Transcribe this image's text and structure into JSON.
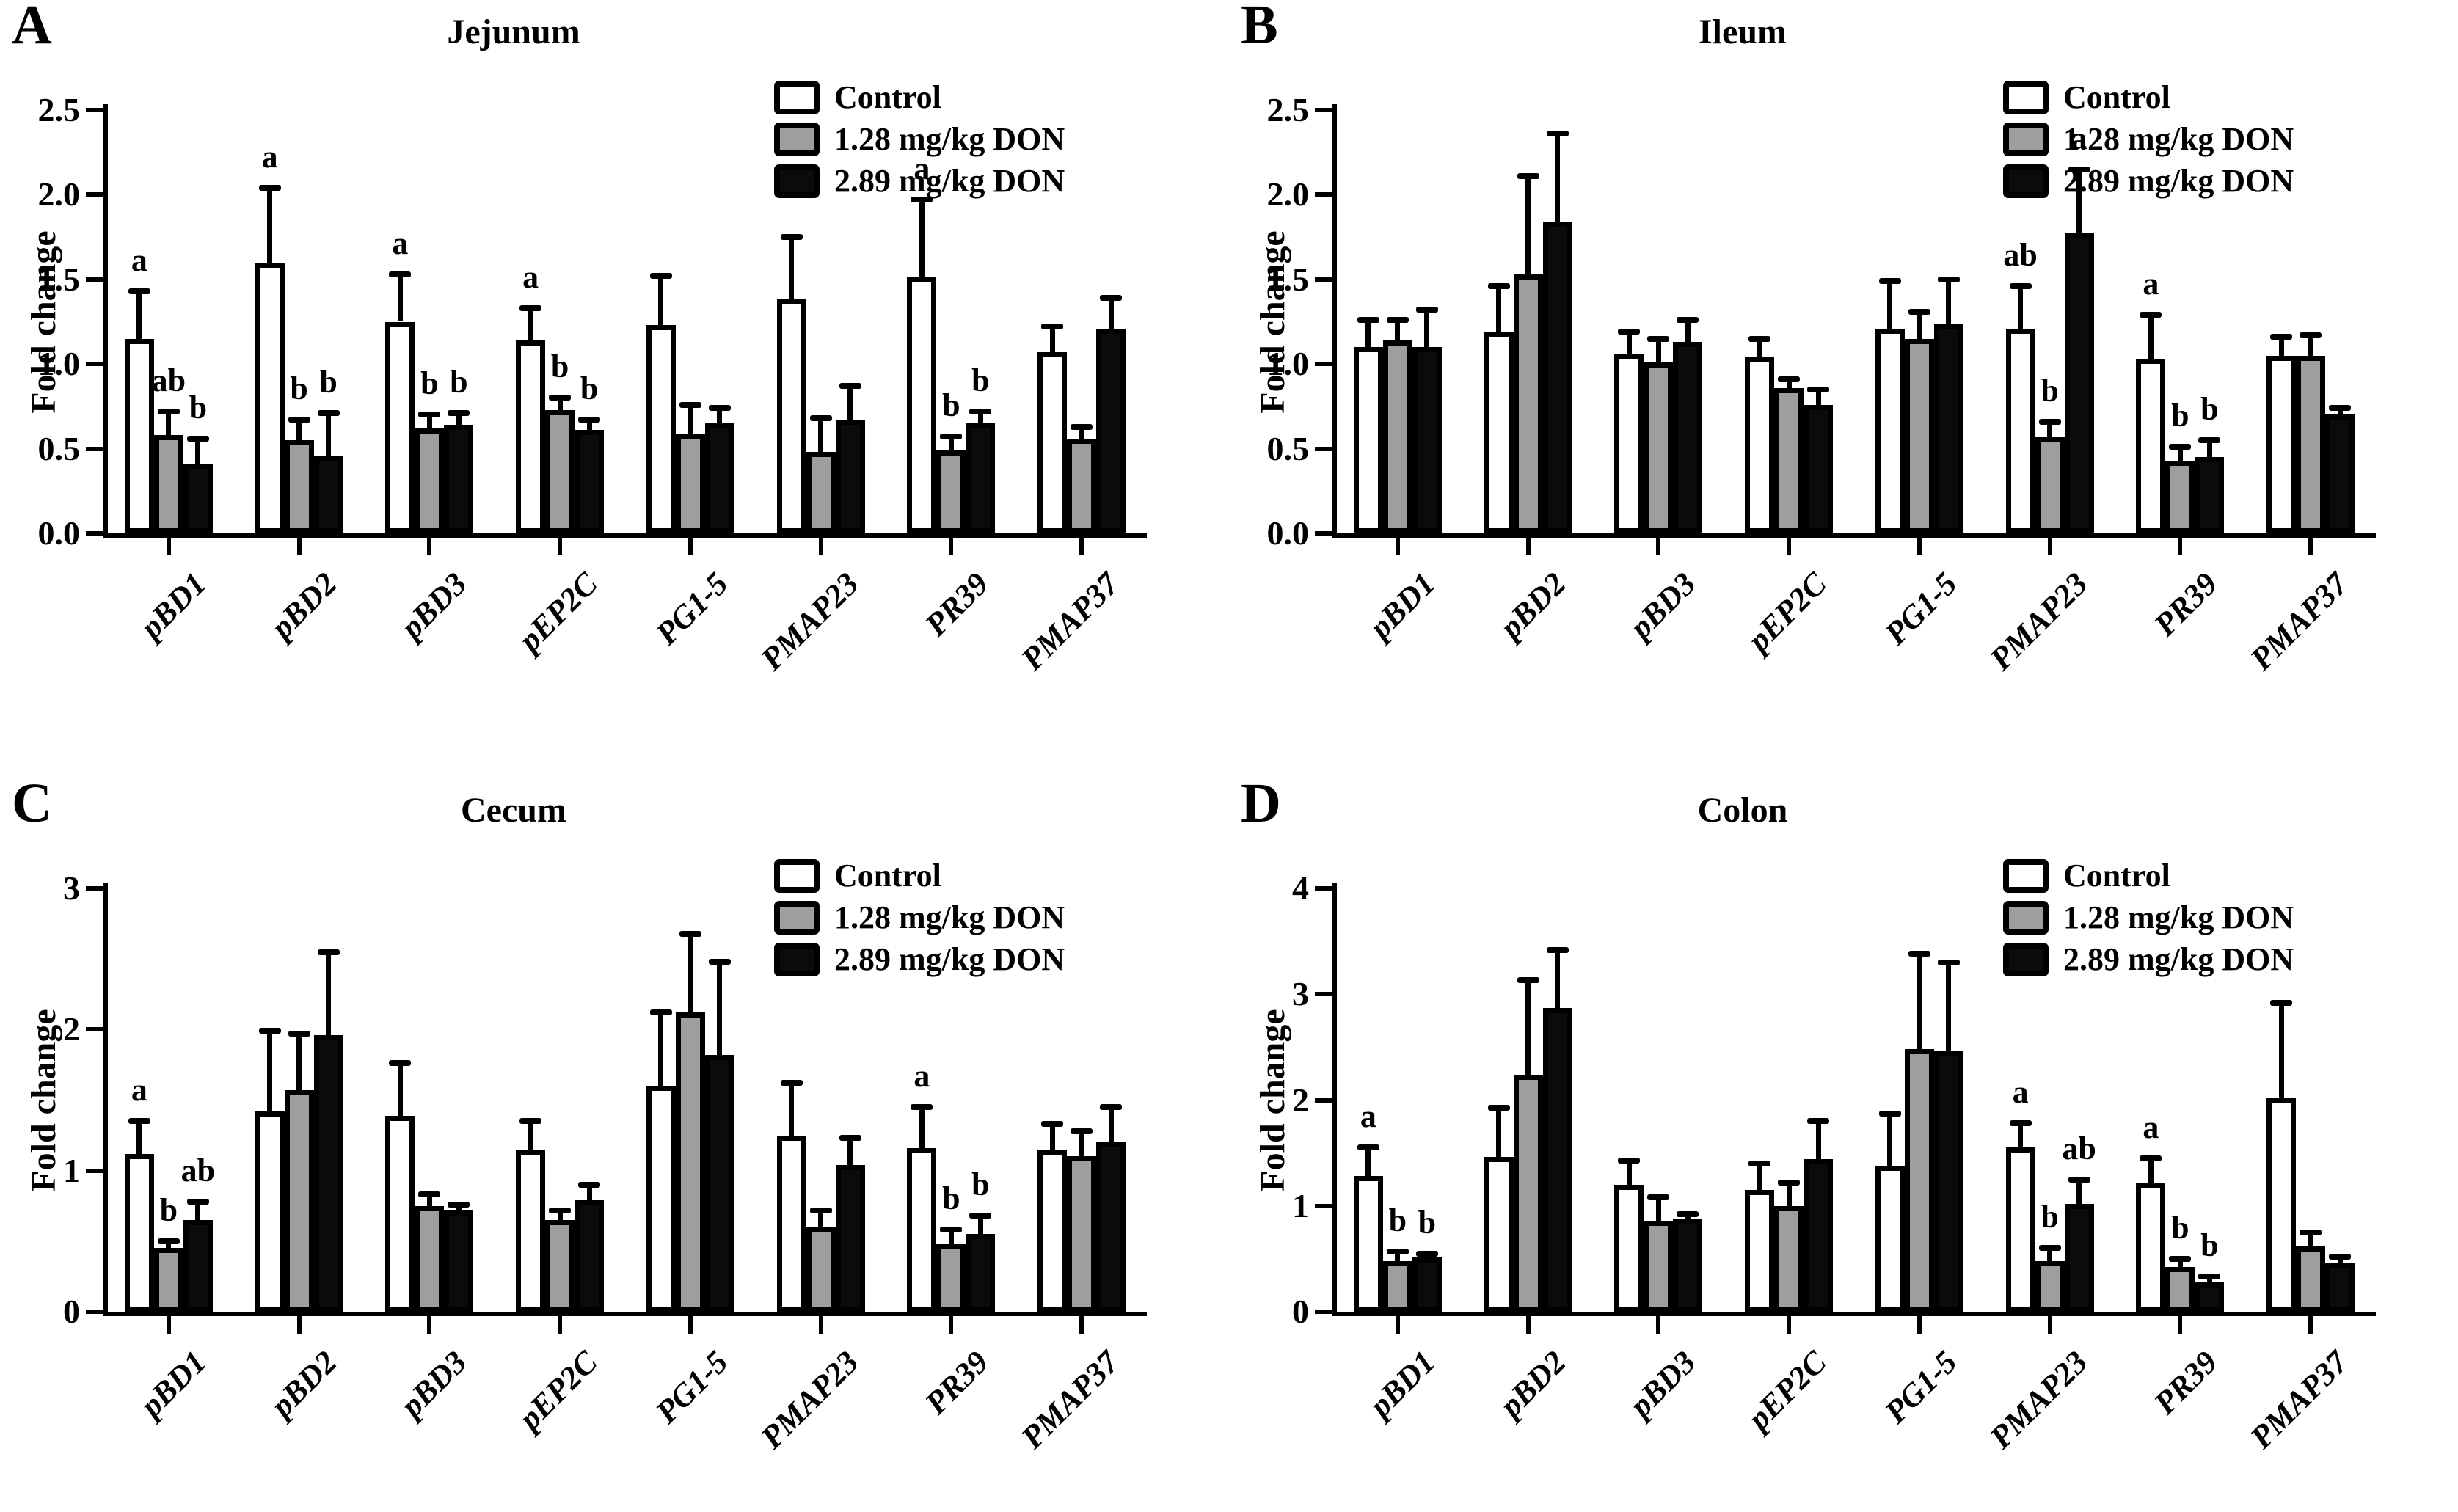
{
  "chart_data": [
    {
      "type": "bar",
      "panel_letter": "A",
      "title": "Jejunum",
      "ylabel": "Fold change",
      "ylim": [
        0,
        2.5
      ],
      "ymax": 2.5,
      "grid": false,
      "legend_position": "upper-right",
      "yticks": [
        {
          "v": 0,
          "label": "0.0"
        },
        {
          "v": 0.5,
          "label": "0.5"
        },
        {
          "v": 1.0,
          "label": "1.0"
        },
        {
          "v": 1.5,
          "label": "1.5"
        },
        {
          "v": 2.0,
          "label": "2.0"
        },
        {
          "v": 2.5,
          "label": "2.5"
        }
      ],
      "categories": [
        "pBD1",
        "pBD2",
        "pBD3",
        "pEP2C",
        "PG1-5",
        "PMAP23",
        "PR39",
        "PMAP37"
      ],
      "series": [
        {
          "name": "Control",
          "fill": "#ffffff",
          "values": [
            1.15,
            1.6,
            1.25,
            1.14,
            1.23,
            1.38,
            1.51,
            1.07
          ],
          "errors": [
            0.28,
            0.44,
            0.28,
            0.19,
            0.29,
            0.37,
            0.46,
            0.15
          ],
          "sig": [
            "a",
            "a",
            "a",
            "a",
            "",
            "",
            "a",
            ""
          ]
        },
        {
          "name": "1.28 mg/kg DON",
          "fill": "#9e9e9e",
          "values": [
            0.58,
            0.55,
            0.62,
            0.73,
            0.59,
            0.48,
            0.49,
            0.56
          ],
          "errors": [
            0.14,
            0.12,
            0.08,
            0.07,
            0.17,
            0.2,
            0.08,
            0.07
          ],
          "sig": [
            "ab",
            "b",
            "b",
            "b",
            "",
            "",
            "b",
            ""
          ]
        },
        {
          "name": "2.89 mg/kg DON",
          "fill": "#0b0b0b",
          "values": [
            0.41,
            0.46,
            0.64,
            0.61,
            0.65,
            0.67,
            0.65,
            1.21
          ],
          "errors": [
            0.15,
            0.25,
            0.07,
            0.06,
            0.09,
            0.2,
            0.07,
            0.18
          ],
          "sig": [
            "b",
            "b",
            "b",
            "b",
            "",
            "",
            "b",
            ""
          ]
        }
      ]
    },
    {
      "type": "bar",
      "panel_letter": "B",
      "title": "Ileum",
      "ylabel": "Fold change",
      "ylim": [
        0,
        2.5
      ],
      "ymax": 2.5,
      "grid": false,
      "legend_position": "upper-right",
      "yticks": [
        {
          "v": 0,
          "label": "0.0"
        },
        {
          "v": 0.5,
          "label": "0.5"
        },
        {
          "v": 1.0,
          "label": "1.0"
        },
        {
          "v": 1.5,
          "label": "1.5"
        },
        {
          "v": 2.0,
          "label": "2.0"
        },
        {
          "v": 2.5,
          "label": "2.5"
        }
      ],
      "categories": [
        "pBD1",
        "pBD2",
        "pBD3",
        "pEP2C",
        "PG1-5",
        "PMAP23",
        "PR39",
        "PMAP37"
      ],
      "series": [
        {
          "name": "Control",
          "fill": "#ffffff",
          "values": [
            1.1,
            1.19,
            1.06,
            1.04,
            1.21,
            1.21,
            1.03,
            1.05
          ],
          "errors": [
            0.16,
            0.27,
            0.13,
            0.11,
            0.28,
            0.25,
            0.26,
            0.11
          ],
          "sig": [
            "",
            "",
            "",
            "",
            "",
            "ab",
            "a",
            ""
          ]
        },
        {
          "name": "1.28 mg/kg DON",
          "fill": "#9e9e9e",
          "values": [
            1.14,
            1.53,
            1.01,
            0.86,
            1.15,
            0.57,
            0.43,
            1.05
          ],
          "errors": [
            0.12,
            0.58,
            0.14,
            0.05,
            0.16,
            0.09,
            0.08,
            0.12
          ],
          "sig": [
            "",
            "",
            "",
            "",
            "",
            "b",
            "b",
            ""
          ]
        },
        {
          "name": "2.89 mg/kg DON",
          "fill": "#0b0b0b",
          "values": [
            1.1,
            1.84,
            1.13,
            0.76,
            1.24,
            1.77,
            0.45,
            0.7
          ],
          "errors": [
            0.22,
            0.52,
            0.13,
            0.09,
            0.26,
            0.38,
            0.1,
            0.04
          ],
          "sig": [
            "",
            "",
            "",
            "",
            "",
            "a",
            "b",
            ""
          ]
        }
      ]
    },
    {
      "type": "bar",
      "panel_letter": "C",
      "title": "Cecum",
      "ylabel": "Fold change",
      "ylim": [
        0,
        3
      ],
      "ymax": 3,
      "grid": false,
      "legend_position": "upper-right",
      "yticks": [
        {
          "v": 0,
          "label": "0"
        },
        {
          "v": 1,
          "label": "1"
        },
        {
          "v": 2,
          "label": "2"
        },
        {
          "v": 3,
          "label": "3"
        }
      ],
      "categories": [
        "pBD1",
        "pBD2",
        "pBD3",
        "pEP2C",
        "PG1-5",
        "PMAP23",
        "PR39",
        "PMAP37"
      ],
      "series": [
        {
          "name": "Control",
          "fill": "#ffffff",
          "values": [
            1.12,
            1.42,
            1.39,
            1.15,
            1.6,
            1.25,
            1.16,
            1.15
          ],
          "errors": [
            0.23,
            0.57,
            0.37,
            0.2,
            0.52,
            0.37,
            0.29,
            0.18
          ],
          "sig": [
            "a",
            "",
            "",
            "",
            "",
            "",
            "a",
            ""
          ]
        },
        {
          "name": "1.28 mg/kg DON",
          "fill": "#9e9e9e",
          "values": [
            0.45,
            1.57,
            0.75,
            0.65,
            2.12,
            0.6,
            0.48,
            1.1
          ],
          "errors": [
            0.05,
            0.4,
            0.08,
            0.07,
            0.56,
            0.12,
            0.1,
            0.18
          ],
          "sig": [
            "b",
            "",
            "",
            "",
            "",
            "",
            "b",
            ""
          ]
        },
        {
          "name": "2.89 mg/kg DON",
          "fill": "#0b0b0b",
          "values": [
            0.65,
            1.96,
            0.72,
            0.79,
            1.82,
            1.04,
            0.55,
            1.2
          ],
          "errors": [
            0.13,
            0.59,
            0.04,
            0.11,
            0.66,
            0.19,
            0.13,
            0.25
          ],
          "sig": [
            "ab",
            "",
            "",
            "",
            "",
            "",
            "b",
            ""
          ]
        }
      ]
    },
    {
      "type": "bar",
      "panel_letter": "D",
      "title": "Colon",
      "ylabel": "Fold change",
      "ylim": [
        0,
        4
      ],
      "ymax": 4,
      "grid": false,
      "legend_position": "upper-right",
      "yticks": [
        {
          "v": 0,
          "label": "0"
        },
        {
          "v": 1,
          "label": "1"
        },
        {
          "v": 2,
          "label": "2"
        },
        {
          "v": 3,
          "label": "3"
        },
        {
          "v": 4,
          "label": "4"
        }
      ],
      "categories": [
        "pBD1",
        "pBD2",
        "pBD3",
        "pEP2C",
        "PG1-5",
        "PMAP23",
        "PR39",
        "PMAP37"
      ],
      "series": [
        {
          "name": "Control",
          "fill": "#ffffff",
          "values": [
            1.28,
            1.46,
            1.2,
            1.15,
            1.38,
            1.55,
            1.21,
            2.02
          ],
          "errors": [
            0.27,
            0.47,
            0.23,
            0.25,
            0.49,
            0.23,
            0.24,
            0.9
          ],
          "sig": [
            "a",
            "",
            "",
            "",
            "",
            "a",
            "a",
            ""
          ]
        },
        {
          "name": "1.28 mg/kg DON",
          "fill": "#9e9e9e",
          "values": [
            0.48,
            2.24,
            0.86,
            1.0,
            2.48,
            0.48,
            0.42,
            0.62
          ],
          "errors": [
            0.09,
            0.89,
            0.22,
            0.22,
            0.9,
            0.12,
            0.08,
            0.13
          ],
          "sig": [
            "b",
            "",
            "",
            "",
            "",
            "b",
            "b",
            ""
          ]
        },
        {
          "name": "2.89 mg/kg DON",
          "fill": "#0b0b0b",
          "values": [
            0.51,
            2.87,
            0.88,
            1.44,
            2.46,
            1.02,
            0.28,
            0.46
          ],
          "errors": [
            0.04,
            0.55,
            0.04,
            0.36,
            0.84,
            0.23,
            0.05,
            0.06
          ],
          "sig": [
            "b",
            "",
            "",
            "",
            "",
            "ab",
            "b",
            ""
          ]
        }
      ]
    }
  ]
}
